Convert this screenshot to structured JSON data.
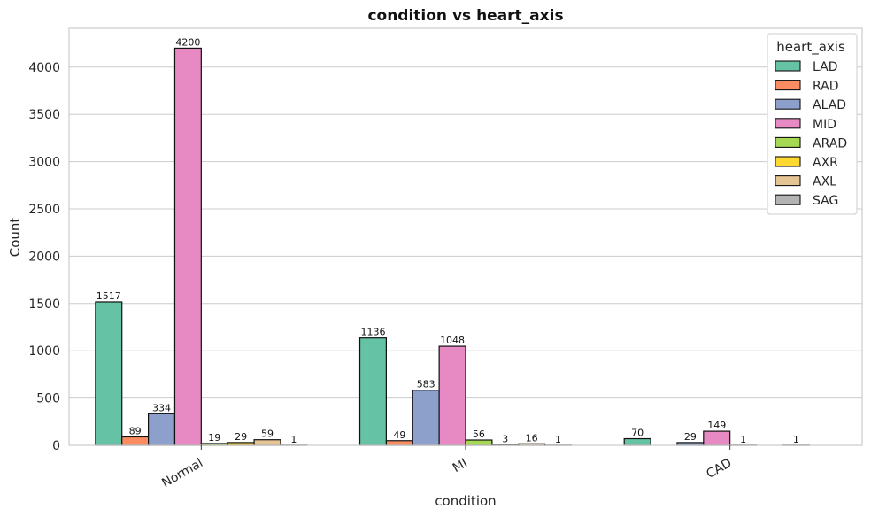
{
  "chart_data": {
    "type": "bar",
    "title": "condition vs heart_axis",
    "xlabel": "condition",
    "ylabel": "Count",
    "categories": [
      "Normal",
      "MI",
      "CAD"
    ],
    "ylim": [
      0,
      4410
    ],
    "yticks": [
      0,
      500,
      1000,
      1500,
      2000,
      2500,
      3000,
      3500,
      4000
    ],
    "grid": true,
    "legend": {
      "title": "heart_axis",
      "placement": "top-right"
    },
    "series": [
      {
        "name": "LAD",
        "color": "#66c2a5",
        "values": [
          1517,
          1136,
          70
        ]
      },
      {
        "name": "RAD",
        "color": "#fc8d62",
        "values": [
          89,
          49,
          null
        ]
      },
      {
        "name": "ALAD",
        "color": "#8da0cb",
        "values": [
          334,
          583,
          29
        ]
      },
      {
        "name": "MID",
        "color": "#e78ac3",
        "values": [
          4200,
          1048,
          149
        ]
      },
      {
        "name": "ARAD",
        "color": "#a6d854",
        "values": [
          19,
          56,
          1
        ]
      },
      {
        "name": "AXR",
        "color": "#ffd92f",
        "values": [
          29,
          3,
          null
        ]
      },
      {
        "name": "AXL",
        "color": "#e5c494",
        "values": [
          59,
          16,
          1
        ]
      },
      {
        "name": "SAG",
        "color": "#b3b3b3",
        "values": [
          1,
          1,
          null
        ]
      }
    ]
  }
}
